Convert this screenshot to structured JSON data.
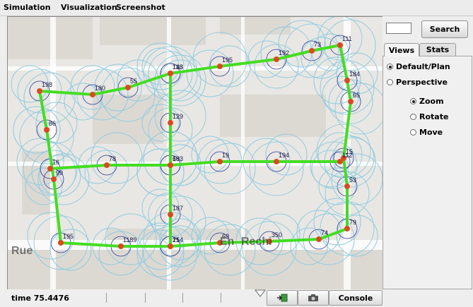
{
  "menu": [
    "Simulation",
    "Visualization",
    "Screenshot"
  ],
  "search": {
    "value": "",
    "button_label": "Search"
  },
  "tabs": [
    {
      "label": "Views",
      "active": true
    },
    {
      "label": "Stats",
      "active": false
    }
  ],
  "views": {
    "default_plan": {
      "label": "Default/Plan",
      "checked": true
    },
    "perspective": {
      "label": "Perspective",
      "checked": false
    },
    "zoom": {
      "label": "Zoom",
      "checked": true
    },
    "rotate": {
      "label": "Rotate",
      "checked": false
    },
    "move": {
      "label": "Move",
      "checked": false
    }
  },
  "status": {
    "time": "time 75.4476"
  },
  "toolbar": {
    "console_label": "Console"
  },
  "map": {
    "street_labels": [
      "Rue",
      "En",
      "Rechi"
    ],
    "node_labels": [
      "198",
      "86",
      "99",
      "195",
      "1189",
      "154",
      "69",
      "350",
      "74",
      "79",
      "53",
      "15",
      "65",
      "184",
      "111",
      "73",
      "192",
      "195",
      "143",
      "55",
      "180",
      "16",
      "78",
      "68",
      "19",
      "194",
      "112",
      "116",
      "129",
      "103",
      "187",
      "21",
      "121",
      "90",
      "107",
      "111"
    ]
  },
  "colors": {
    "range_circle": "#8fcbe0",
    "range_circle_dark": "#2a3a9a",
    "link": "#44dd22",
    "node": "#d94a1f",
    "map_bg": "#e9e7e3",
    "road": "#ffffff"
  }
}
